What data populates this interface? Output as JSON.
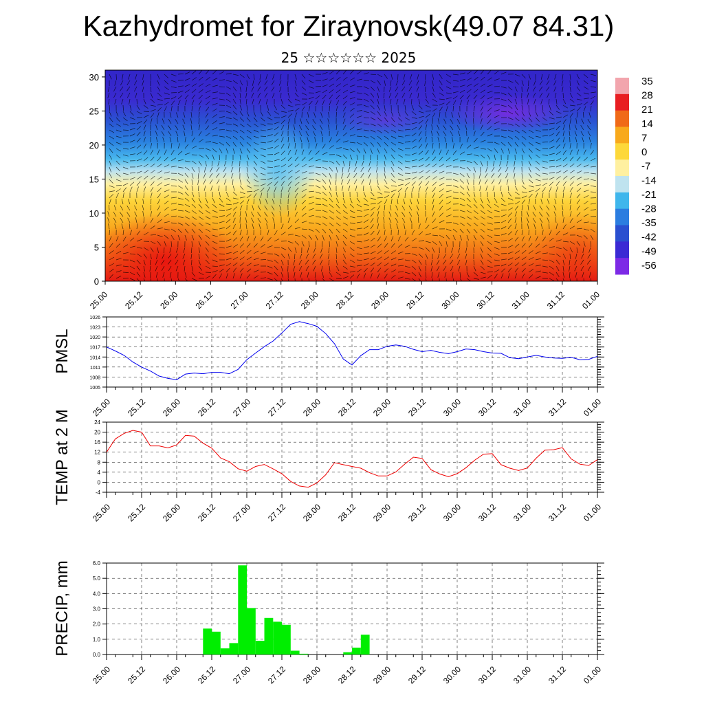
{
  "header": {
    "title": "Kazhydromet for Ziraynovsk(49.07 84.31)",
    "subtitle": "25 ☆☆☆☆☆☆ 2025"
  },
  "chart_data": [
    {
      "type": "heatmap",
      "title": "",
      "ylim": [
        0,
        31
      ],
      "y_ticks": [
        "0",
        "5",
        "10",
        "15",
        "20",
        "25",
        "30"
      ],
      "x_ticks": [
        "25.00",
        "25.12",
        "26.00",
        "26.12",
        "27.00",
        "27.12",
        "28.00",
        "28.12",
        "29.00",
        "29.12",
        "30.00",
        "30.12",
        "31.00",
        "31.12",
        "01.00"
      ],
      "colorbar_labels": [
        "35",
        "28",
        "21",
        "14",
        "7",
        "0",
        "-7",
        "-14",
        "-21",
        "-28",
        "-35",
        "-42",
        "-49",
        "-56"
      ],
      "colorbar_colors": [
        "#f2a5ad",
        "#e81e22",
        "#f06a18",
        "#f8a91c",
        "#fdd83a",
        "#fff0a0",
        "#bfe3ef",
        "#3fb6ec",
        "#2b7de0",
        "#2a4fd0",
        "#3b2ad4",
        "#7d2ae6"
      ],
      "overlay": "wind-barbs"
    },
    {
      "type": "line",
      "ylabel": "PMSL",
      "ylim": [
        1005,
        1026
      ],
      "y_ticks": [
        "1005",
        "1008",
        "1011",
        "1014",
        "1017",
        "1020",
        "1023",
        "1026"
      ],
      "x_ticks": [
        "25.00",
        "25.12",
        "26.00",
        "26.12",
        "27.00",
        "27.12",
        "28.00",
        "28.12",
        "29.00",
        "29.12",
        "30.00",
        "30.12",
        "31.00",
        "31.12",
        "01.00"
      ],
      "grid": true,
      "color": "#0000ee",
      "series": [
        {
          "x": [
            0,
            3,
            6,
            9,
            12,
            15,
            18,
            21,
            24,
            27,
            30,
            33,
            36,
            39,
            42,
            45,
            48,
            51,
            54,
            57,
            60,
            63,
            66,
            69,
            72,
            75,
            78,
            81,
            84,
            87,
            90,
            93,
            96,
            99,
            102,
            105,
            108,
            111,
            114,
            117,
            120,
            123,
            126,
            129,
            132,
            135,
            138,
            141,
            144,
            147,
            150,
            153,
            156,
            159,
            162,
            165,
            168
          ],
          "values": [
            1017,
            1015.8,
            1014.5,
            1012.5,
            1011,
            1009.8,
            1008.3,
            1007.6,
            1007.2,
            1008.9,
            1009.2,
            1009,
            1009.4,
            1009.4,
            1009,
            1010.3,
            1013.2,
            1015.2,
            1017.1,
            1018.8,
            1021.2,
            1023.8,
            1024.6,
            1024,
            1023.2,
            1021,
            1018,
            1013.4,
            1011.6,
            1014.4,
            1016.2,
            1016.2,
            1017.2,
            1017.6,
            1017.2,
            1016.3,
            1015.6,
            1016,
            1015.4,
            1015,
            1015.6,
            1016.4,
            1016.2,
            1015.6,
            1015.2,
            1015.1,
            1013.8,
            1013.5,
            1014,
            1014.5,
            1014,
            1013.7,
            1013.6,
            1013.9,
            1013.2,
            1013.3,
            1014.2
          ]
        }
      ]
    },
    {
      "type": "line",
      "ylabel": "TEMP at 2 M",
      "ylim": [
        -4,
        24
      ],
      "y_ticks": [
        "-4",
        "0",
        "4",
        "8",
        "12",
        "16",
        "20",
        "24"
      ],
      "x_ticks": [
        "25.00",
        "25.12",
        "26.00",
        "26.12",
        "27.00",
        "27.12",
        "28.00",
        "28.12",
        "29.00",
        "29.12",
        "30.00",
        "30.12",
        "31.00",
        "31.12",
        "01.00"
      ],
      "grid": true,
      "color": "#ee0000",
      "series": [
        {
          "x": [
            0,
            3,
            6,
            9,
            12,
            15,
            18,
            21,
            24,
            27,
            30,
            33,
            36,
            39,
            42,
            45,
            48,
            51,
            54,
            57,
            60,
            63,
            66,
            69,
            72,
            75,
            78,
            81,
            84,
            87,
            90,
            93,
            96,
            99,
            102,
            105,
            108,
            111,
            114,
            117,
            120,
            123,
            126,
            129,
            132,
            135,
            138,
            141,
            144,
            147,
            150,
            153,
            156,
            159,
            162,
            165,
            168
          ],
          "values": [
            12,
            17.3,
            19.5,
            20.7,
            20,
            14.5,
            14.5,
            13.7,
            14.9,
            18.7,
            18.4,
            15.6,
            13.6,
            9.7,
            8.2,
            5.4,
            4.4,
            6.3,
            7.1,
            5.3,
            3.4,
            0.3,
            -1.5,
            -2,
            -0.3,
            3,
            7.8,
            7,
            6.3,
            5.6,
            3.8,
            2.5,
            2.5,
            4.1,
            7.2,
            10,
            9.5,
            5,
            3.3,
            2.2,
            3.4,
            5.8,
            8.8,
            11.2,
            11.4,
            7,
            5.6,
            4.7,
            5.7,
            9.6,
            12.8,
            13,
            13.8,
            9.3,
            7.2,
            6.7,
            9
          ]
        }
      ]
    },
    {
      "type": "bar",
      "ylabel": "PRECIP, mm",
      "ylim": [
        0,
        6
      ],
      "y_ticks": [
        "0.0",
        "1.0",
        "2.0",
        "3.0",
        "4.0",
        "5.0",
        "6.0"
      ],
      "x_ticks": [
        "25.00",
        "25.12",
        "26.00",
        "26.12",
        "27.00",
        "27.12",
        "28.00",
        "28.12",
        "29.00",
        "29.12",
        "30.00",
        "30.12",
        "31.00",
        "31.12",
        "01.00"
      ],
      "grid": true,
      "color": "#00ee00",
      "series": [
        {
          "x": [
            33,
            36,
            39,
            42,
            45,
            48,
            51,
            54,
            57,
            60,
            63,
            66,
            81,
            84,
            87
          ],
          "values": [
            1.7,
            1.5,
            0.4,
            0.75,
            5.85,
            3.05,
            0.9,
            2.4,
            2.15,
            1.95,
            0.25,
            0.05,
            0.15,
            0.45,
            1.3
          ]
        }
      ]
    }
  ]
}
